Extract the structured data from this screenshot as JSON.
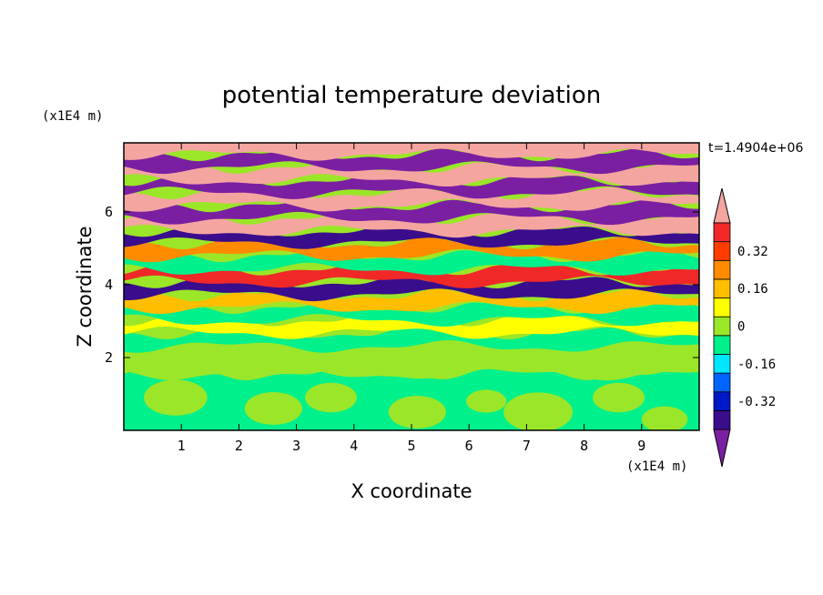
{
  "chart_data": {
    "type": "heatmap",
    "title": "potential temperature deviation",
    "xlabel": "X coordinate",
    "ylabel": "Z coordinate",
    "x_unit": "(x1E4 m)",
    "y_unit": "(x1E4 m)",
    "time_label": "t=1.4904e+06",
    "xlim": [
      0,
      10
    ],
    "ylim": [
      0,
      7.9
    ],
    "xticks": [
      1,
      2,
      3,
      4,
      5,
      6,
      7,
      8,
      9
    ],
    "yticks": [
      2,
      4,
      6
    ],
    "colorbar": {
      "levels": [
        -0.48,
        -0.4,
        -0.32,
        -0.24,
        -0.16,
        -0.08,
        0,
        0.08,
        0.16,
        0.24,
        0.32,
        0.4,
        0.48
      ],
      "tick_labels": [
        "0.32",
        "0.16",
        "0",
        "-0.16",
        "-0.32"
      ],
      "tick_values": [
        0.32,
        0.16,
        0,
        -0.16,
        -0.32
      ],
      "colors": [
        "#7a1fa2",
        "#3a0d8c",
        "#0019c8",
        "#0064ff",
        "#00e6ff",
        "#00f08c",
        "#9be628",
        "#ffff00",
        "#ffbe00",
        "#ff8c00",
        "#ff3c00",
        "#f02828",
        "#f5a5a0"
      ],
      "extend": "both"
    },
    "bands": [
      {
        "z": 7.75,
        "value": 0.48
      },
      {
        "z": 7.4,
        "value": -0.48
      },
      {
        "z": 7.05,
        "value": 0.48
      },
      {
        "z": 6.7,
        "value": -0.48
      },
      {
        "z": 6.35,
        "value": 0.48
      },
      {
        "z": 6.0,
        "value": -0.48
      },
      {
        "z": 5.65,
        "value": 0.48
      },
      {
        "z": 5.3,
        "value": -0.4
      },
      {
        "z": 5.0,
        "value": 0.24
      },
      {
        "z": 4.6,
        "value": -0.08
      },
      {
        "z": 4.25,
        "value": 0.4
      },
      {
        "z": 3.9,
        "value": -0.4
      },
      {
        "z": 3.55,
        "value": 0.16
      },
      {
        "z": 3.2,
        "value": -0.08
      },
      {
        "z": 2.85,
        "value": 0.08
      },
      {
        "z": 2.5,
        "value": -0.08
      },
      {
        "z": 2.1,
        "value": 0.0
      },
      {
        "z": 1.0,
        "value": -0.08
      }
    ]
  }
}
